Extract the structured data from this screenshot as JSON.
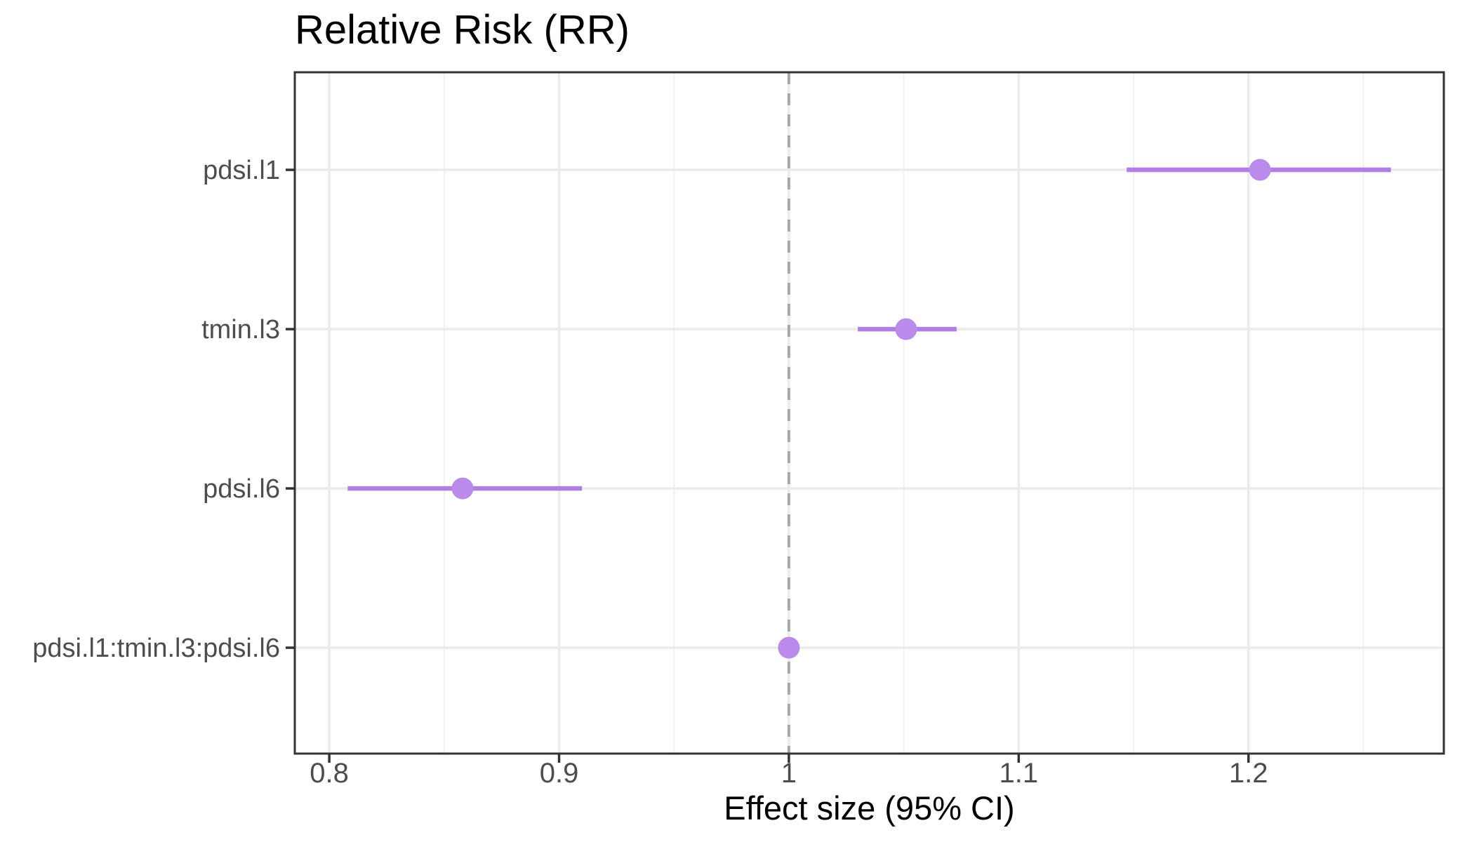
{
  "chart_data": {
    "type": "scatter",
    "subtype": "forest-plot-pointrange",
    "title": "Relative Risk (RR)",
    "xlabel": "Effect size (95% CI)",
    "ylabel": "",
    "categories": [
      "pdsi.l1",
      "tmin.l3",
      "pdsi.l6",
      "pdsi.l1:tmin.l3:pdsi.l6"
    ],
    "points": [
      {
        "label": "pdsi.l1",
        "estimate": 1.205,
        "ci_low": 1.147,
        "ci_high": 1.262
      },
      {
        "label": "tmin.l3",
        "estimate": 1.051,
        "ci_low": 1.03,
        "ci_high": 1.073
      },
      {
        "label": "pdsi.l6",
        "estimate": 0.858,
        "ci_low": 0.808,
        "ci_high": 0.91
      },
      {
        "label": "pdsi.l1:tmin.l3:pdsi.l6",
        "estimate": 1.0,
        "ci_low": 0.997,
        "ci_high": 1.003
      }
    ],
    "x_ticks": [
      0.8,
      0.9,
      1.0,
      1.1,
      1.2
    ],
    "x_tick_labels": [
      "0.8",
      "0.9",
      "1",
      "1.1",
      "1.2"
    ],
    "x_minor_ticks": [
      0.85,
      0.95,
      1.05,
      1.15,
      1.25
    ],
    "xlim": [
      0.785,
      1.285
    ],
    "reference_line": 1.0,
    "reference_line_style": "dashed",
    "grid": true,
    "legend": "none",
    "colors": {
      "point": "#ba8bea",
      "ci_line": "#b07fe4",
      "reference_line": "#a8a8a8",
      "grid_major": "#ebebeb",
      "grid_minor": "#f1f1f1",
      "panel_border": "#333333",
      "tick_mark": "#333333",
      "axis_text": "#4d4d4d",
      "title_text": "#000000",
      "background": "#ffffff"
    }
  }
}
